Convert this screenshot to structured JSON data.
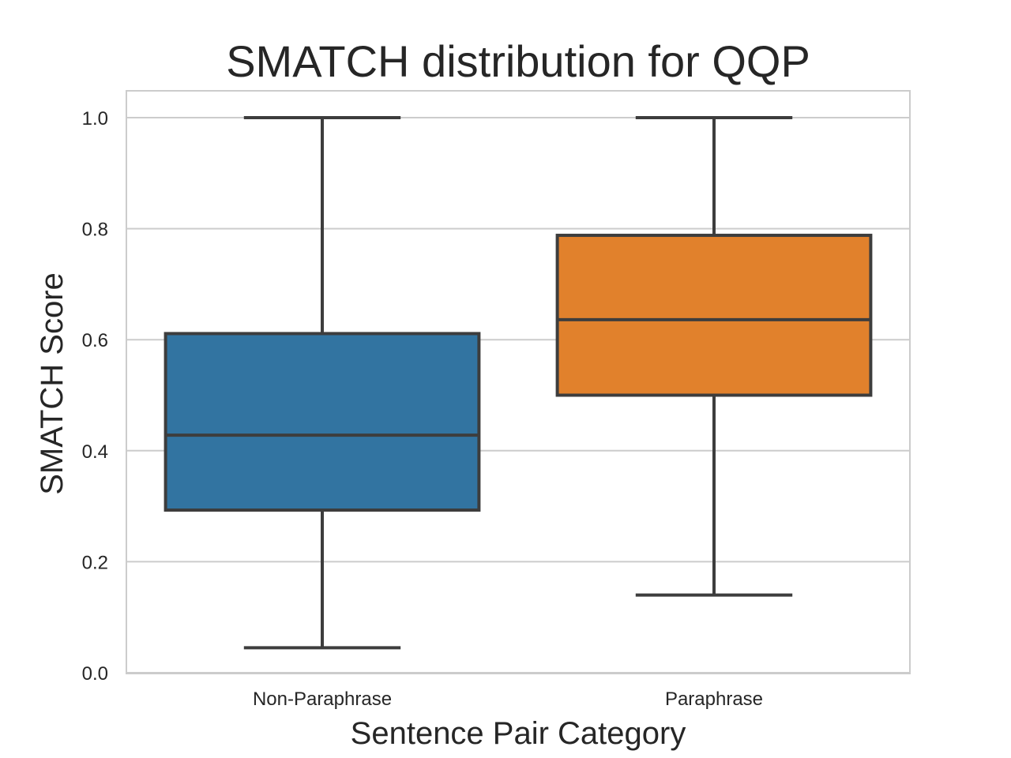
{
  "chart_data": {
    "type": "box",
    "title": "SMATCH distribution for QQP",
    "xlabel": "Sentence Pair Category",
    "ylabel": "SMATCH Score",
    "categories": [
      "Non-Paraphrase",
      "Paraphrase"
    ],
    "ylim": [
      0.0,
      1.05
    ],
    "yticks": [
      "0.0",
      "0.2",
      "0.4",
      "0.6",
      "0.8",
      "1.0"
    ],
    "grid": true,
    "boxes": [
      {
        "category": "Non-Paraphrase",
        "whisker_low": 0.045,
        "q1": 0.293,
        "median": 0.428,
        "q3": 0.611,
        "whisker_high": 1.0,
        "color": "#3274a1"
      },
      {
        "category": "Paraphrase",
        "whisker_low": 0.14,
        "q1": 0.5,
        "median": 0.636,
        "q3": 0.788,
        "whisker_high": 1.0,
        "color": "#e1812c"
      }
    ],
    "line_color": "#3d3d3d",
    "grid_color": "#cccccc"
  }
}
